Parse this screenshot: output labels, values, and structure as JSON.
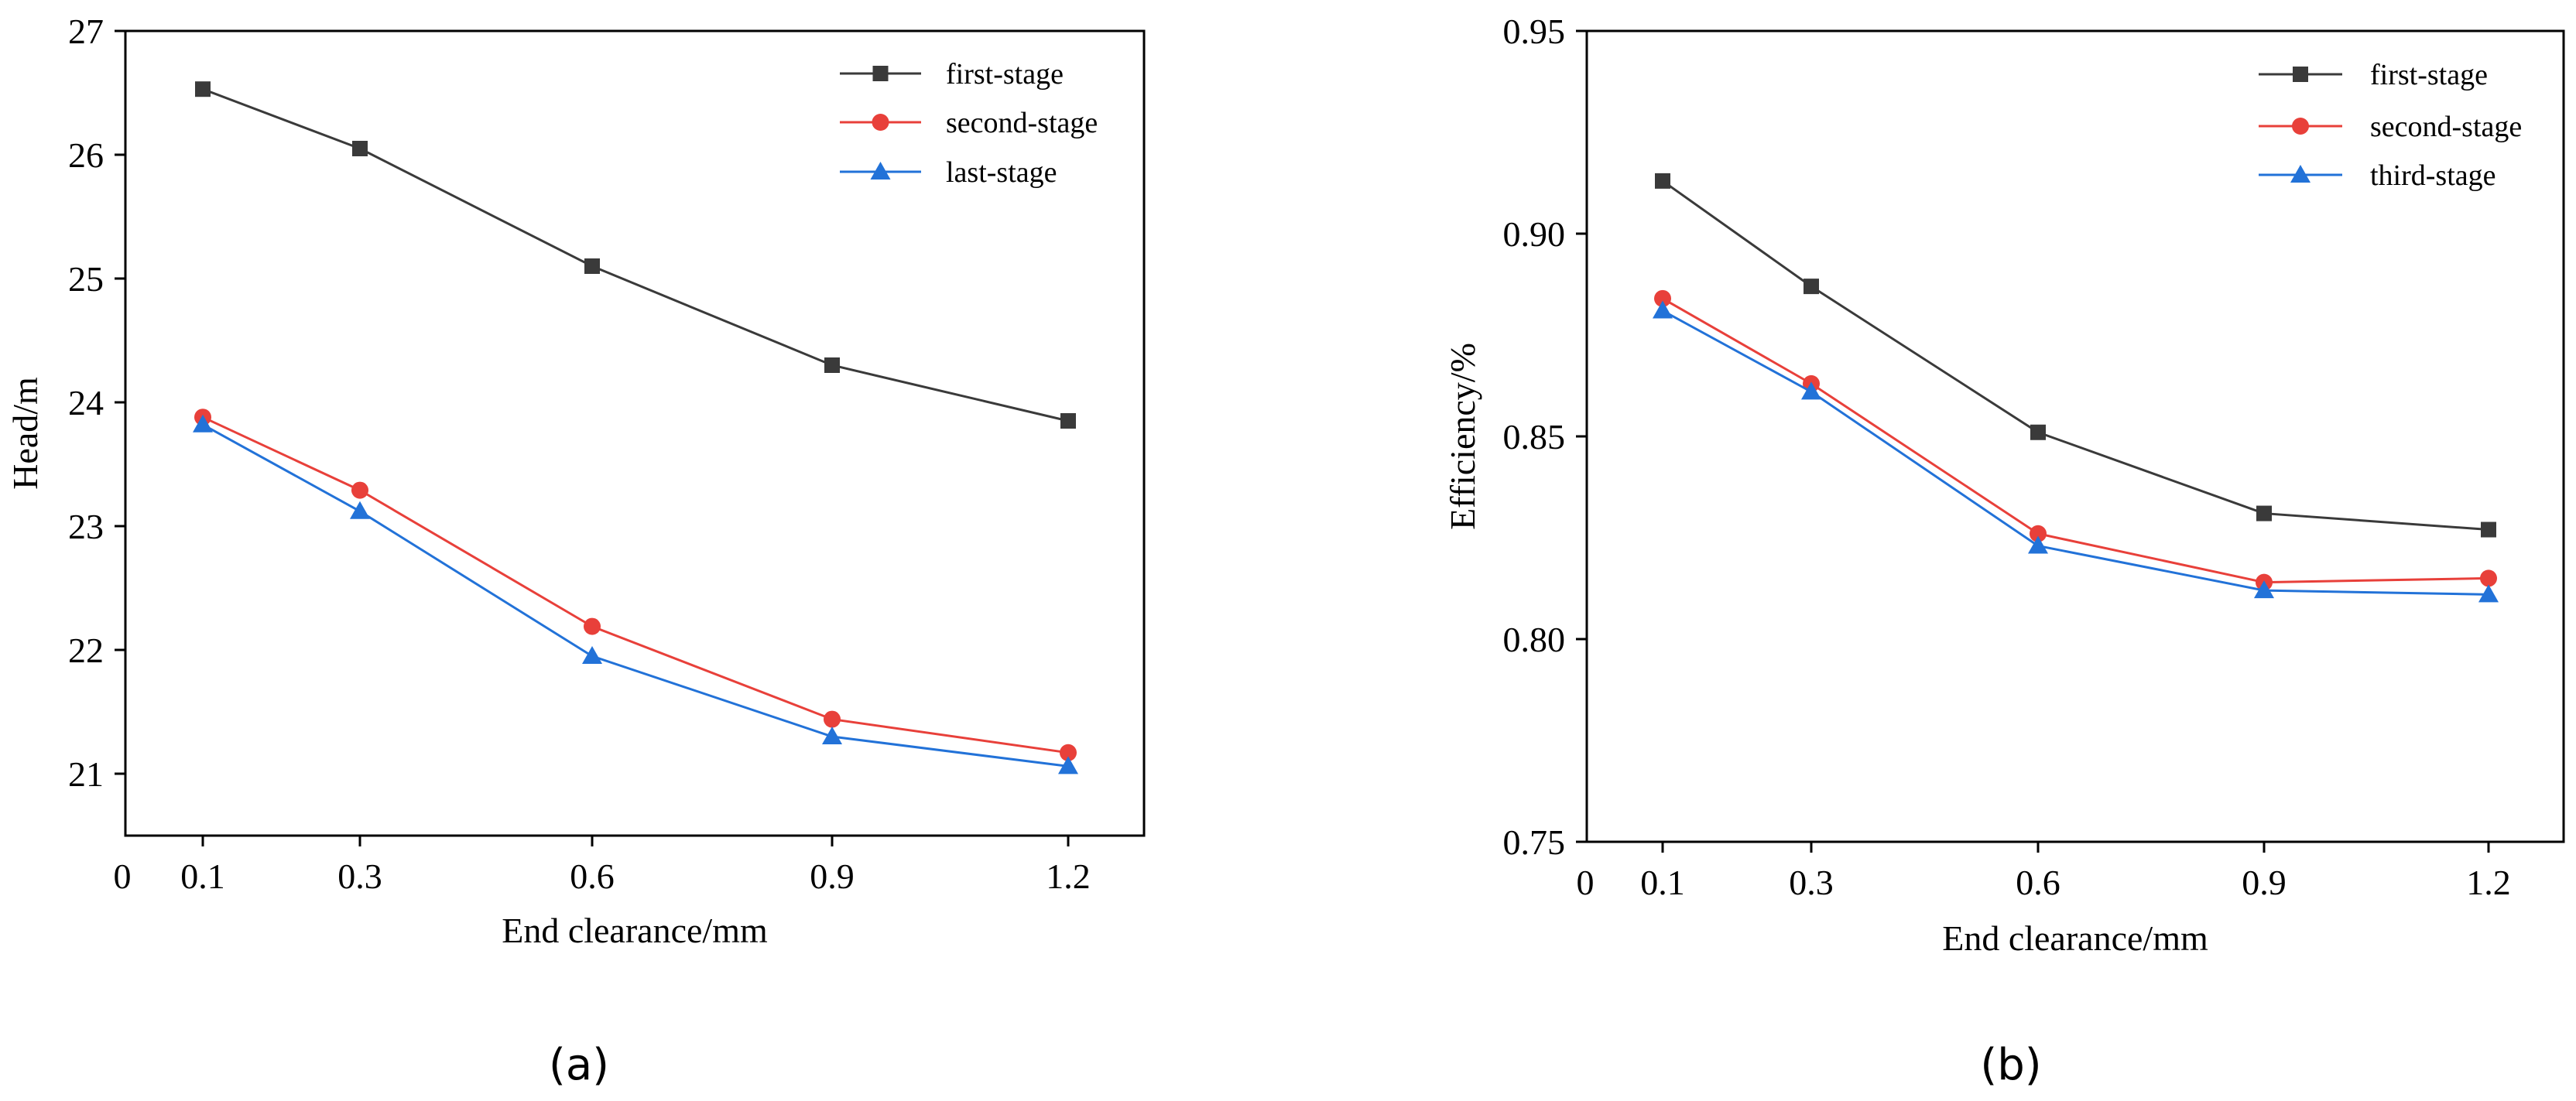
{
  "chart_data": [
    {
      "type": "line",
      "caption": "(a)",
      "xlabel": "End clearance/mm",
      "ylabel": "Head/m",
      "x": [
        0.1,
        0.3,
        0.6,
        0.9,
        1.2
      ],
      "x_tick_labels": [
        "0",
        "0.1",
        "0.3",
        "0.6",
        "0.9",
        "1.2"
      ],
      "ylim": [
        20.5,
        27
      ],
      "y_ticks": [
        21,
        22,
        23,
        24,
        25,
        26,
        27
      ],
      "y_tick_labels": [
        "21",
        "22",
        "23",
        "24",
        "25",
        "26",
        "27"
      ],
      "legend_position": "top-right",
      "series": [
        {
          "name": "first-stage",
          "color": "#3a3a3a",
          "marker": "square",
          "values": [
            26.53,
            26.05,
            25.1,
            24.3,
            23.85
          ]
        },
        {
          "name": "second-stage",
          "color": "#e8403a",
          "marker": "circle",
          "values": [
            23.88,
            23.29,
            22.19,
            21.44,
            21.17
          ]
        },
        {
          "name": "last-stage",
          "color": "#2272d8",
          "marker": "triangle",
          "values": [
            23.82,
            23.12,
            21.95,
            21.3,
            21.06
          ]
        }
      ]
    },
    {
      "type": "line",
      "caption": "(b)",
      "xlabel": "End clearance/mm",
      "ylabel": "Efficiency/%",
      "x": [
        0.1,
        0.3,
        0.6,
        0.9,
        1.2
      ],
      "x_tick_labels": [
        "0",
        "0.1",
        "0.3",
        "0.6",
        "0.9",
        "1.2"
      ],
      "ylim": [
        0.75,
        0.95
      ],
      "y_ticks": [
        0.75,
        0.8,
        0.85,
        0.9,
        0.95
      ],
      "y_tick_labels": [
        "0.75",
        "0.80",
        "0.85",
        "0.90",
        "0.95"
      ],
      "legend_position": "top-right",
      "series": [
        {
          "name": "first-stage",
          "color": "#3a3a3a",
          "marker": "square",
          "values": [
            0.913,
            0.887,
            0.851,
            0.831,
            0.827
          ]
        },
        {
          "name": "second-stage",
          "color": "#e8403a",
          "marker": "circle",
          "values": [
            0.884,
            0.863,
            0.826,
            0.814,
            0.815
          ]
        },
        {
          "name": "third-stage",
          "color": "#2272d8",
          "marker": "triangle",
          "values": [
            0.881,
            0.861,
            0.823,
            0.812,
            0.811
          ]
        }
      ]
    }
  ]
}
